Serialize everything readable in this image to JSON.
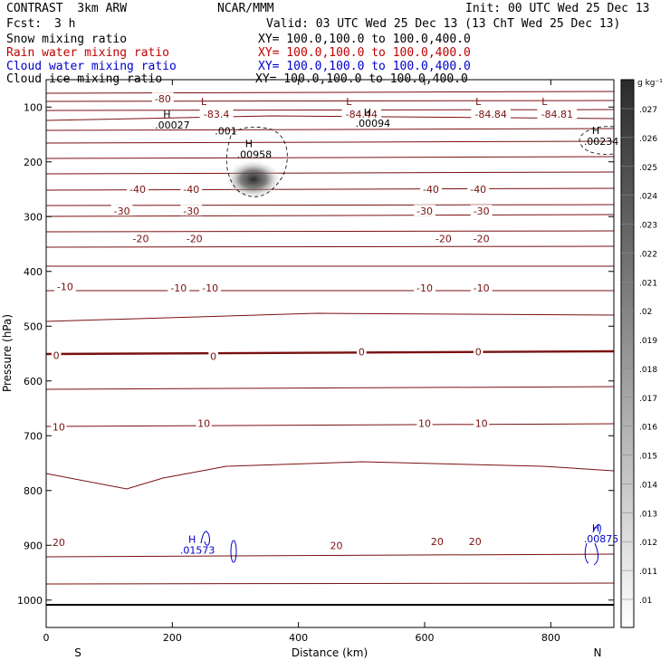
{
  "header": {
    "title": "CONTRAST  3km ARW",
    "center": "NCAR/MMM",
    "init": "Init: 00 UTC Wed 25 Dec 13",
    "fcst_label": "Fcst:",
    "fcst_value": "3 h",
    "valid": "Valid: 03 UTC Wed 25 Dec 13 (13 ChT Wed 25 Dec 13)",
    "fields": [
      {
        "name": "Snow mixing ratio",
        "xy": "XY= 100.0,100.0 to 100.0,400.0",
        "color": "#000000"
      },
      {
        "name": "Rain water mixing ratio",
        "xy": "XY= 100.0,100.0 to 100.0,400.0",
        "color": "#cc0000"
      },
      {
        "name": "Cloud water mixing ratio",
        "xy": "XY= 100.0,100.0 to 100.0,400.0",
        "color": "#0000cc"
      },
      {
        "name": "Cloud ice mixing ratio",
        "xy": "XY= 100.0,100.0 to 100.0,400.0",
        "color": "#000000"
      }
    ]
  },
  "chart_data": {
    "type": "contour",
    "xlabel": "Distance (km)",
    "ylabel": "Pressure (hPa)",
    "xlim": [
      0,
      900
    ],
    "ylim": [
      1050,
      50
    ],
    "x_ticks": [
      0,
      200,
      400,
      600,
      800
    ],
    "y_ticks": [
      100,
      200,
      300,
      400,
      500,
      600,
      700,
      800,
      900,
      1000
    ],
    "x_ends": {
      "left": "S",
      "right": "N"
    },
    "colorbar": {
      "unit": "g kg⁻¹",
      "levels": [
        ".01",
        ".011",
        ".012",
        ".013",
        ".014",
        ".015",
        ".016",
        ".017",
        ".018",
        ".019",
        ".02",
        ".021",
        ".022",
        ".023",
        ".024",
        ".025",
        ".026",
        ".027"
      ]
    },
    "temperature_labels": [
      {
        "text": "-80",
        "x": 185,
        "p": 85
      },
      {
        "text": "-83.4",
        "x": 270,
        "p": 113,
        "hl": "L"
      },
      {
        "text": "-84.44",
        "x": 500,
        "p": 113,
        "hl": "L"
      },
      {
        "text": "-84.84",
        "x": 705,
        "p": 113,
        "hl": "L"
      },
      {
        "text": "-84.81",
        "x": 810,
        "p": 113,
        "hl": "L"
      },
      {
        "text": "-40",
        "x": 145,
        "p": 250
      },
      {
        "text": "-40",
        "x": 230,
        "p": 250
      },
      {
        "text": "-40",
        "x": 610,
        "p": 250
      },
      {
        "text": "-40",
        "x": 685,
        "p": 250
      },
      {
        "text": "-30",
        "x": 120,
        "p": 290
      },
      {
        "text": "-30",
        "x": 230,
        "p": 290
      },
      {
        "text": "-30",
        "x": 600,
        "p": 290
      },
      {
        "text": "-30",
        "x": 690,
        "p": 290
      },
      {
        "text": "-20",
        "x": 150,
        "p": 340
      },
      {
        "text": "-20",
        "x": 235,
        "p": 340
      },
      {
        "text": "-20",
        "x": 630,
        "p": 340
      },
      {
        "text": "-20",
        "x": 690,
        "p": 340
      },
      {
        "text": "-10",
        "x": 30,
        "p": 428
      },
      {
        "text": "-10",
        "x": 210,
        "p": 430
      },
      {
        "text": "-10",
        "x": 260,
        "p": 430
      },
      {
        "text": "-10",
        "x": 600,
        "p": 430
      },
      {
        "text": "-10",
        "x": 690,
        "p": 430
      },
      {
        "text": "0",
        "x": 16,
        "p": 553
      },
      {
        "text": "0",
        "x": 265,
        "p": 555
      },
      {
        "text": "0",
        "x": 500,
        "p": 547
      },
      {
        "text": "0",
        "x": 685,
        "p": 547
      },
      {
        "text": "10",
        "x": 20,
        "p": 684
      },
      {
        "text": "10",
        "x": 250,
        "p": 677
      },
      {
        "text": "10",
        "x": 600,
        "p": 677
      },
      {
        "text": "10",
        "x": 690,
        "p": 677
      },
      {
        "text": "20",
        "x": 20,
        "p": 895
      },
      {
        "text": "20",
        "x": 460,
        "p": 900
      },
      {
        "text": "20",
        "x": 620,
        "p": 893
      },
      {
        "text": "20",
        "x": 680,
        "p": 893
      }
    ],
    "extrema": [
      {
        "hl": "H",
        "value": ".00027",
        "x": 200,
        "p": 136,
        "color": "#000000"
      },
      {
        "hl": "",
        "value": ".001",
        "x": 285,
        "p": 147,
        "color": "#000000"
      },
      {
        "hl": "H",
        "value": ".00958",
        "x": 330,
        "p": 190,
        "color": "#000000"
      },
      {
        "hl": "H",
        "value": ".00094",
        "x": 518,
        "p": 133,
        "color": "#000000"
      },
      {
        "hl": "H",
        "value": ".00234",
        "x": 880,
        "p": 166,
        "color": "#000000"
      },
      {
        "hl": "H",
        "value": ".01573",
        "x": 240,
        "p": 912,
        "color": "#0000cc"
      },
      {
        "hl": "H",
        "value": ".00875",
        "x": 880,
        "p": 891,
        "color": "#0000cc"
      }
    ]
  }
}
